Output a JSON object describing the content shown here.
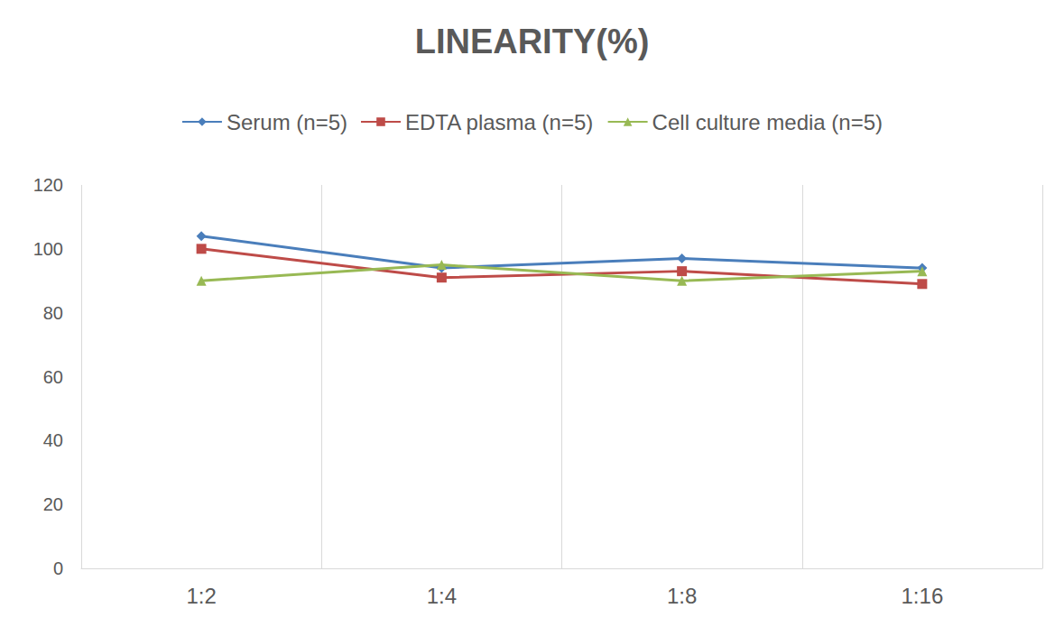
{
  "chart_data": {
    "type": "line",
    "title": "LINEARITY(%)",
    "categories": [
      "1:2",
      "1:4",
      "1:8",
      "1:16"
    ],
    "series": [
      {
        "name": "Serum (n=5)",
        "color": "#4a7ebb",
        "marker": "diamond",
        "values": [
          104,
          94,
          97,
          94
        ]
      },
      {
        "name": "EDTA plasma (n=5)",
        "color": "#be4b48",
        "marker": "square",
        "values": [
          100,
          91,
          93,
          89
        ]
      },
      {
        "name": "Cell culture media (n=5)",
        "color": "#98b954",
        "marker": "triangle",
        "values": [
          90,
          95,
          90,
          93
        ]
      }
    ],
    "ylim": [
      0,
      120
    ],
    "yticks": [
      0,
      20,
      40,
      60,
      80,
      100,
      120
    ],
    "grid": true,
    "legend": "top"
  }
}
